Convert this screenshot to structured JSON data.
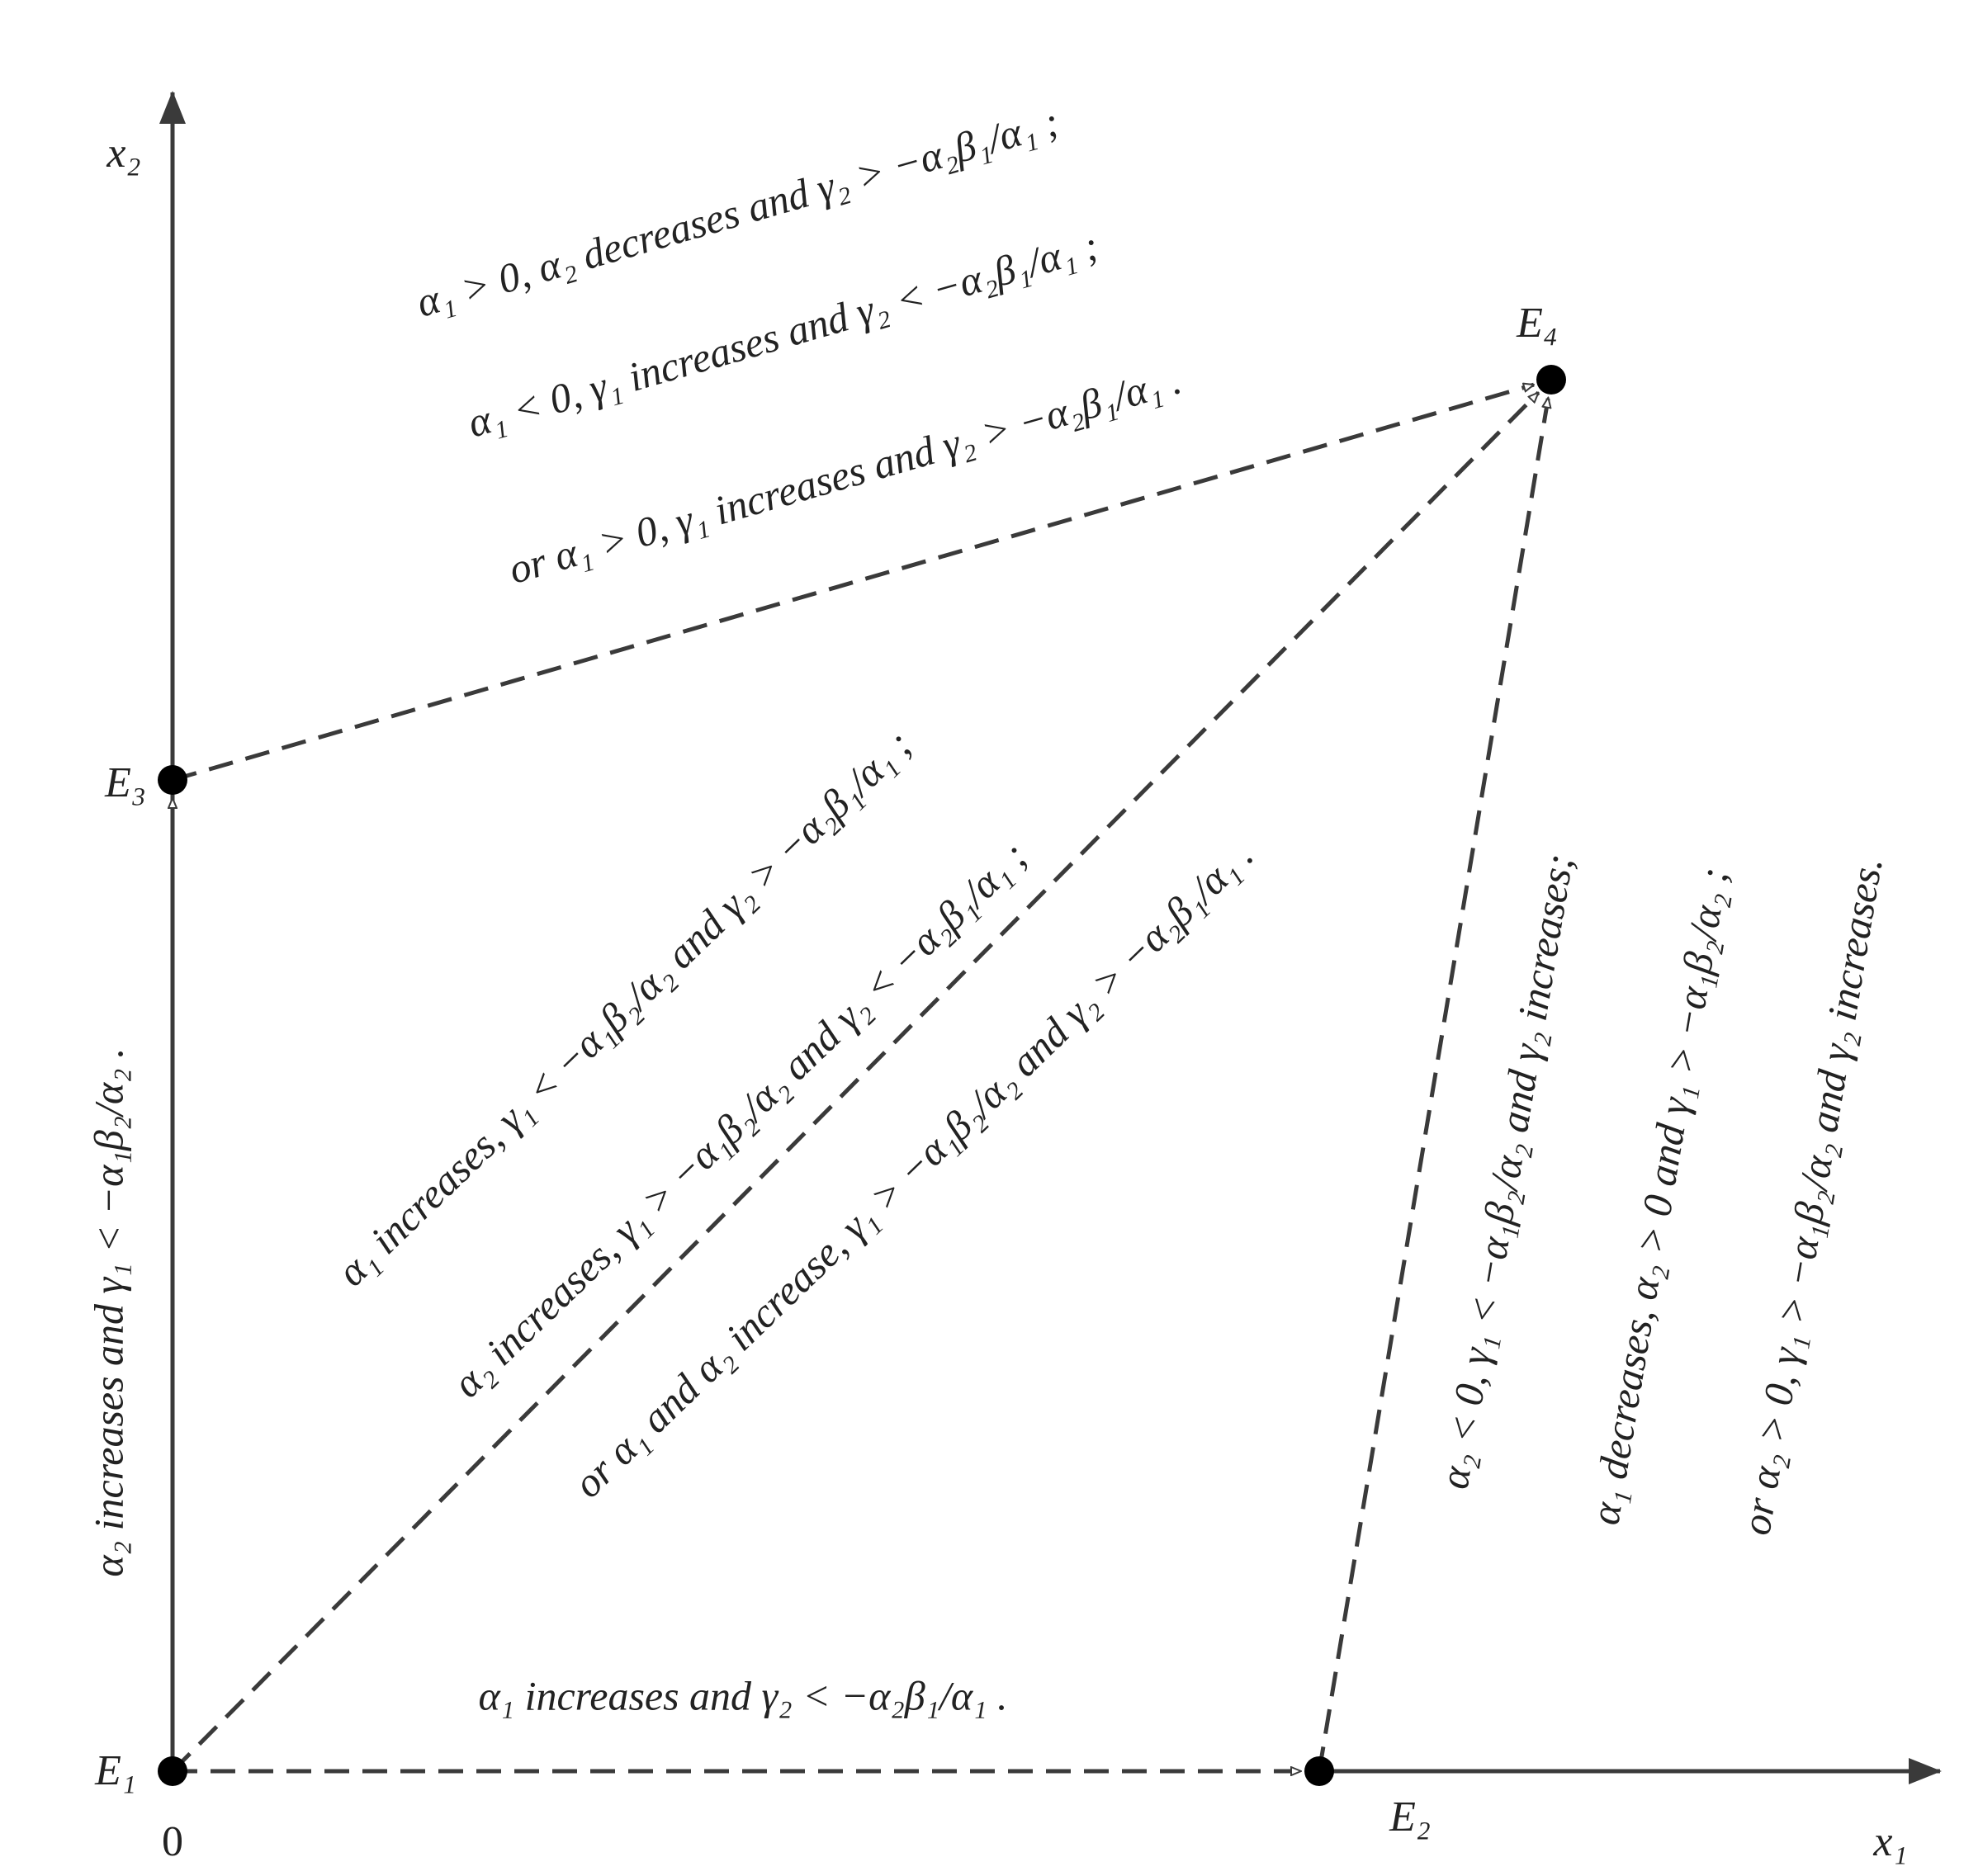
{
  "axes": {
    "x1": "x₁",
    "x2": "x₂",
    "origin": "0"
  },
  "nodes": [
    {
      "label": "E₁"
    },
    {
      "label": "E₂"
    },
    {
      "label": "E₃"
    },
    {
      "label": "E₄"
    }
  ],
  "edges": [
    {
      "from": "E₁",
      "to": "E₃",
      "conditions": [
        "α₂ increases and γ₁ < −α₁β₂/α₂ ."
      ]
    },
    {
      "from": "E₁",
      "to": "E₂",
      "conditions": [
        "α₁ increases and γ₂ < −α₂β₁/α₁ ."
      ]
    },
    {
      "from": "E₃",
      "to": "E₄",
      "conditions": [
        "α₁ > 0, α₂ decreases and γ₂ > −α₂β₁/α₁ ;",
        "α₁ < 0, γ₁ increases and γ₂ < −α₂β₁/α₁ ;",
        "or α₁ > 0, γ₁ increases and γ₂ > −α₂β₁/α₁ ."
      ]
    },
    {
      "from": "E₁",
      "to": "E₄",
      "conditions": [
        "α₁ increases, γ₁ < −α₁β₂/α₂ and γ₂ > −α₂β₁/α₁ ;",
        "α₂ increases, γ₁ > −α₁β₂/α₂ and γ₂ < −α₂β₁/α₁ ;",
        "or α₁ and α₂ increase, γ₁ > −α₁β₂/α₂ and γ₂ > −α₂β₁/α₁ ."
      ]
    },
    {
      "from": "E₂",
      "to": "E₄",
      "conditions": [
        "α₂ < 0, γ₁ < −α₁β₂/α₂ and γ₂ increases;",
        "α₁ decreases, α₂ > 0 and γ₁ > −α₁β₂/α₂ ;",
        "or α₂ > 0, γ₁ > −α₁β₂/α₂ and γ₂ increases."
      ]
    }
  ]
}
